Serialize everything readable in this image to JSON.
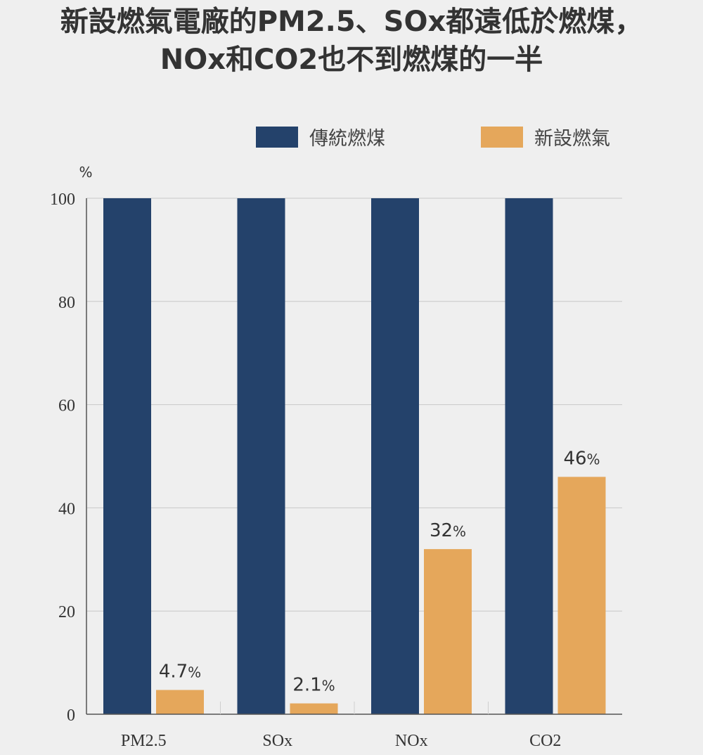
{
  "chart_data": {
    "type": "bar",
    "title_line1": "新設燃氣電廠的PM2.5、SOx都遠低於燃煤，",
    "title_line2": "NOx和CO2也不到燃煤的一半",
    "ylabel": "%",
    "ylim": [
      0,
      100
    ],
    "yticks": [
      "0",
      "20",
      "40",
      "60",
      "80",
      "100"
    ],
    "categories": [
      "PM2.5",
      "SOx",
      "NOx",
      "CO2"
    ],
    "legend_position": "top-right",
    "grid": true,
    "series": [
      {
        "name": "傳統燃煤",
        "color": "#24426b",
        "values": [
          100,
          100,
          100,
          100
        ],
        "labels": [
          "",
          "",
          "",
          ""
        ]
      },
      {
        "name": "新設燃氣",
        "color": "#e5a75b",
        "values": [
          4.7,
          2.1,
          32,
          46
        ],
        "labels": [
          "4.7",
          "2.1",
          "32",
          "46"
        ]
      }
    ],
    "label_suffix": "%"
  }
}
